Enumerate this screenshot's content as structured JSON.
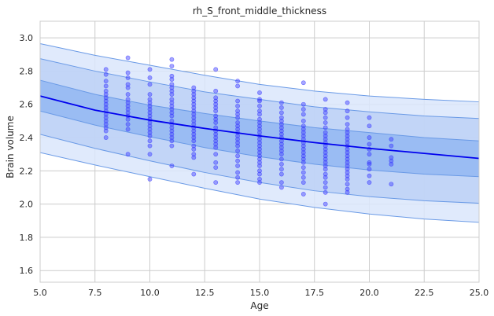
{
  "chart_data": {
    "type": "scatter",
    "title": "rh_S_front_middle_thickness",
    "xlabel": "Age",
    "ylabel": "Brain volume",
    "xlim": [
      5.0,
      25.0
    ],
    "ylim": [
      1.53,
      3.1
    ],
    "xticks": [
      5.0,
      7.5,
      10.0,
      12.5,
      15.0,
      17.5,
      20.0,
      22.5,
      25.0
    ],
    "xtick_labels": [
      "5.0",
      "7.5",
      "10.0",
      "12.5",
      "15.0",
      "17.5",
      "20.0",
      "22.5",
      "25.0"
    ],
    "yticks": [
      1.6,
      1.8,
      2.0,
      2.2,
      2.4,
      2.6,
      2.8,
      3.0
    ],
    "ytick_labels": [
      "1.6",
      "1.8",
      "2.0",
      "2.2",
      "2.4",
      "2.6",
      "2.8",
      "3.0"
    ],
    "grid": true,
    "colors": {
      "trend_line": "#0000ee",
      "points": "#3b3bff",
      "band_outer": "#dbe6fb",
      "band_middle": "#bcd1f6",
      "band_inner": "#93b7f2",
      "band_edge": "#6a9ae6",
      "grid": "#cccccc"
    },
    "trend": {
      "x": [
        5,
        7.5,
        10,
        12.5,
        15,
        17.5,
        20,
        22.5,
        25
      ],
      "y": [
        2.65,
        2.565,
        2.505,
        2.455,
        2.41,
        2.37,
        2.335,
        2.305,
        2.275
      ]
    },
    "bands": [
      {
        "x": [
          5,
          7.5,
          10,
          12.5,
          15,
          17.5,
          20,
          22.5,
          25
        ],
        "lower": [
          2.31,
          2.235,
          2.165,
          2.095,
          2.03,
          1.98,
          1.94,
          1.91,
          1.89
        ],
        "upper": [
          2.965,
          2.895,
          2.835,
          2.775,
          2.72,
          2.68,
          2.65,
          2.63,
          2.615
        ]
      },
      {
        "x": [
          5,
          7.5,
          10,
          12.5,
          15,
          17.5,
          20,
          22.5,
          25
        ],
        "lower": [
          2.42,
          2.335,
          2.26,
          2.19,
          2.13,
          2.08,
          2.045,
          2.02,
          2.005
        ],
        "upper": [
          2.875,
          2.8,
          2.735,
          2.675,
          2.63,
          2.585,
          2.555,
          2.53,
          2.515
        ]
      },
      {
        "x": [
          5,
          7.5,
          10,
          12.5,
          15,
          17.5,
          20,
          22.5,
          25
        ],
        "lower": [
          2.56,
          2.475,
          2.405,
          2.34,
          2.285,
          2.24,
          2.205,
          2.18,
          2.165
        ],
        "upper": [
          2.745,
          2.66,
          2.595,
          2.545,
          2.5,
          2.46,
          2.43,
          2.4,
          2.38
        ]
      }
    ],
    "points": [
      {
        "x": 8,
        "y": [
          2.81,
          2.78,
          2.74,
          2.71,
          2.68,
          2.66,
          2.64,
          2.62,
          2.6,
          2.58,
          2.56,
          2.54,
          2.52,
          2.5,
          2.48,
          2.46,
          2.44,
          2.4
        ]
      },
      {
        "x": 9,
        "y": [
          2.88,
          2.79,
          2.76,
          2.72,
          2.7,
          2.66,
          2.63,
          2.61,
          2.59,
          2.57,
          2.55,
          2.53,
          2.51,
          2.48,
          2.45,
          2.3
        ]
      },
      {
        "x": 10,
        "y": [
          2.81,
          2.76,
          2.72,
          2.66,
          2.63,
          2.61,
          2.59,
          2.57,
          2.55,
          2.53,
          2.51,
          2.49,
          2.47,
          2.45,
          2.43,
          2.41,
          2.38,
          2.35,
          2.3,
          2.15
        ]
      },
      {
        "x": 11,
        "y": [
          2.87,
          2.83,
          2.77,
          2.75,
          2.72,
          2.7,
          2.68,
          2.66,
          2.63,
          2.61,
          2.59,
          2.57,
          2.55,
          2.53,
          2.5,
          2.48,
          2.46,
          2.44,
          2.42,
          2.4,
          2.38,
          2.35,
          2.23
        ]
      },
      {
        "x": 12,
        "y": [
          2.7,
          2.68,
          2.66,
          2.64,
          2.62,
          2.6,
          2.58,
          2.56,
          2.54,
          2.52,
          2.5,
          2.48,
          2.46,
          2.44,
          2.42,
          2.4,
          2.38,
          2.35,
          2.33,
          2.3,
          2.28,
          2.18
        ]
      },
      {
        "x": 13,
        "y": [
          2.81,
          2.68,
          2.64,
          2.62,
          2.6,
          2.58,
          2.56,
          2.53,
          2.51,
          2.49,
          2.46,
          2.44,
          2.42,
          2.4,
          2.38,
          2.36,
          2.34,
          2.3,
          2.25,
          2.22,
          2.13
        ]
      },
      {
        "x": 14,
        "y": [
          2.74,
          2.71,
          2.62,
          2.59,
          2.56,
          2.54,
          2.52,
          2.49,
          2.47,
          2.45,
          2.43,
          2.41,
          2.39,
          2.37,
          2.35,
          2.32,
          2.29,
          2.26,
          2.23,
          2.19,
          2.16,
          2.13
        ]
      },
      {
        "x": 15,
        "y": [
          2.67,
          2.63,
          2.62,
          2.59,
          2.56,
          2.54,
          2.51,
          2.49,
          2.47,
          2.45,
          2.43,
          2.41,
          2.39,
          2.37,
          2.35,
          2.33,
          2.31,
          2.29,
          2.27,
          2.25,
          2.23,
          2.2,
          2.18,
          2.15,
          2.13
        ]
      },
      {
        "x": 16,
        "y": [
          2.61,
          2.58,
          2.55,
          2.52,
          2.5,
          2.48,
          2.46,
          2.44,
          2.42,
          2.4,
          2.38,
          2.36,
          2.34,
          2.32,
          2.3,
          2.27,
          2.24,
          2.21,
          2.18,
          2.13,
          2.1
        ]
      },
      {
        "x": 17,
        "y": [
          2.73,
          2.6,
          2.57,
          2.54,
          2.5,
          2.47,
          2.45,
          2.43,
          2.41,
          2.39,
          2.37,
          2.35,
          2.33,
          2.31,
          2.29,
          2.27,
          2.25,
          2.22,
          2.19,
          2.16,
          2.13,
          2.06
        ]
      },
      {
        "x": 18,
        "y": [
          2.63,
          2.57,
          2.55,
          2.52,
          2.49,
          2.46,
          2.43,
          2.41,
          2.39,
          2.37,
          2.35,
          2.33,
          2.31,
          2.29,
          2.27,
          2.25,
          2.23,
          2.21,
          2.18,
          2.16,
          2.13,
          2.1,
          2.07,
          2.0
        ]
      },
      {
        "x": 19,
        "y": [
          2.61,
          2.56,
          2.52,
          2.48,
          2.45,
          2.43,
          2.41,
          2.39,
          2.37,
          2.35,
          2.33,
          2.31,
          2.29,
          2.27,
          2.25,
          2.23,
          2.21,
          2.19,
          2.17,
          2.15,
          2.12,
          2.09,
          2.07
        ]
      },
      {
        "x": 20,
        "y": [
          2.52,
          2.47,
          2.4,
          2.36,
          2.33,
          2.3,
          2.25,
          2.24,
          2.21,
          2.17,
          2.13
        ]
      },
      {
        "x": 21,
        "y": [
          2.39,
          2.35,
          2.28,
          2.26,
          2.24,
          2.12
        ]
      }
    ]
  }
}
